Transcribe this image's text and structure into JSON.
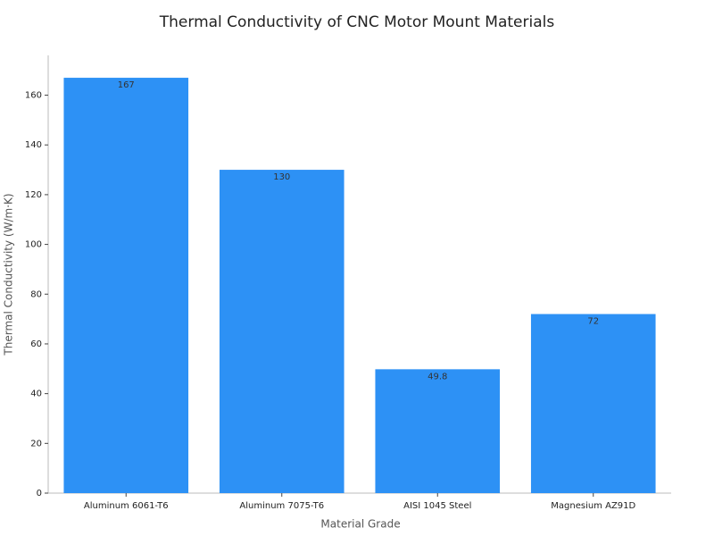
{
  "chart_data": {
    "type": "bar",
    "title": "Thermal Conductivity of CNC Motor Mount Materials",
    "x_label": "Material Grade",
    "y_label": "Thermal Conductivity (W/m·K)",
    "categories": [
      "Aluminum 6061-T6",
      "Aluminum 7075-T6",
      "AISI 1045 Steel",
      "Magnesium AZ91D"
    ],
    "values": [
      167,
      130,
      49.8,
      72
    ],
    "color": "#2d91f5",
    "ylim": [
      0,
      176
    ],
    "yticks": [
      0,
      20,
      40,
      60,
      80,
      100,
      120,
      140,
      160
    ],
    "grid": false
  }
}
